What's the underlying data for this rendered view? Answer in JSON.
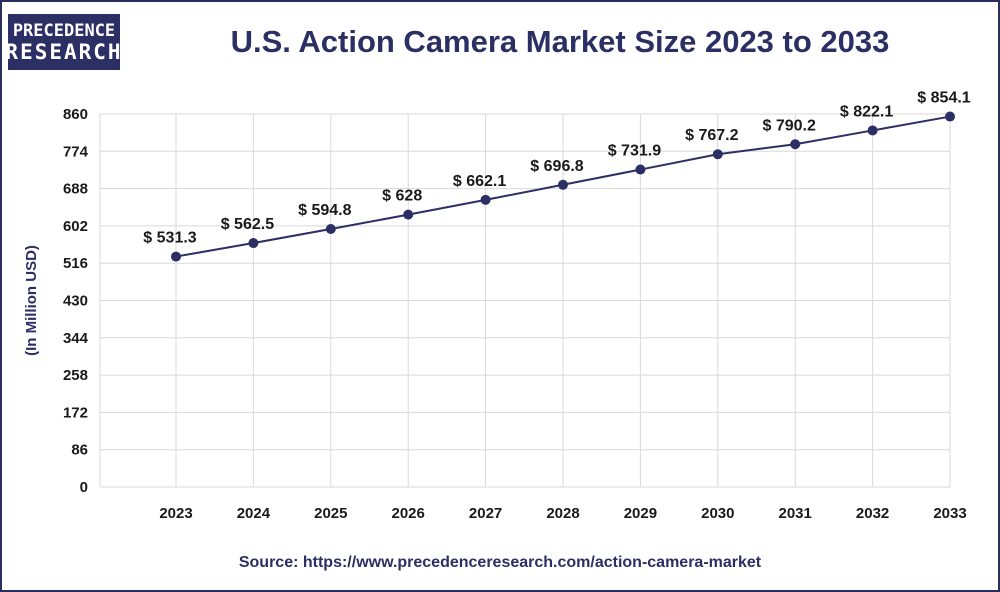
{
  "logo": {
    "line1": "PRECEDENCE",
    "line2": "RESEARCH"
  },
  "chart_data": {
    "type": "line",
    "title": "U.S. Action Camera Market Size 2023 to 2033",
    "xlabel": "",
    "ylabel": "(In Million USD)",
    "categories": [
      "2023",
      "2024",
      "2025",
      "2026",
      "2027",
      "2028",
      "2029",
      "2030",
      "2031",
      "2032",
      "2033"
    ],
    "series": [
      {
        "name": "U.S. Action Camera Market Size",
        "values": [
          531.3,
          562.5,
          594.8,
          628,
          662.1,
          696.8,
          731.9,
          767.2,
          790.2,
          822.1,
          854.1
        ],
        "labels": [
          "$ 531.3",
          "$ 562.5",
          "$ 594.8",
          "$ 628",
          "$ 662.1",
          "$ 696.8",
          "$ 731.9",
          "$ 767.2",
          "$ 790.2",
          "$ 822.1",
          "$ 854.1"
        ],
        "color": "#2b2f63"
      }
    ],
    "yticks": [
      "0",
      "86",
      "172",
      "258",
      "344",
      "430",
      "516",
      "602",
      "688",
      "774",
      "860"
    ],
    "ylim": [
      0,
      860
    ],
    "grid": true,
    "source": "Source: https://www.precedenceresearch.com/action-camera-market"
  },
  "colors": {
    "accent": "#2b2f63",
    "grid": "#d9d9d9"
  }
}
